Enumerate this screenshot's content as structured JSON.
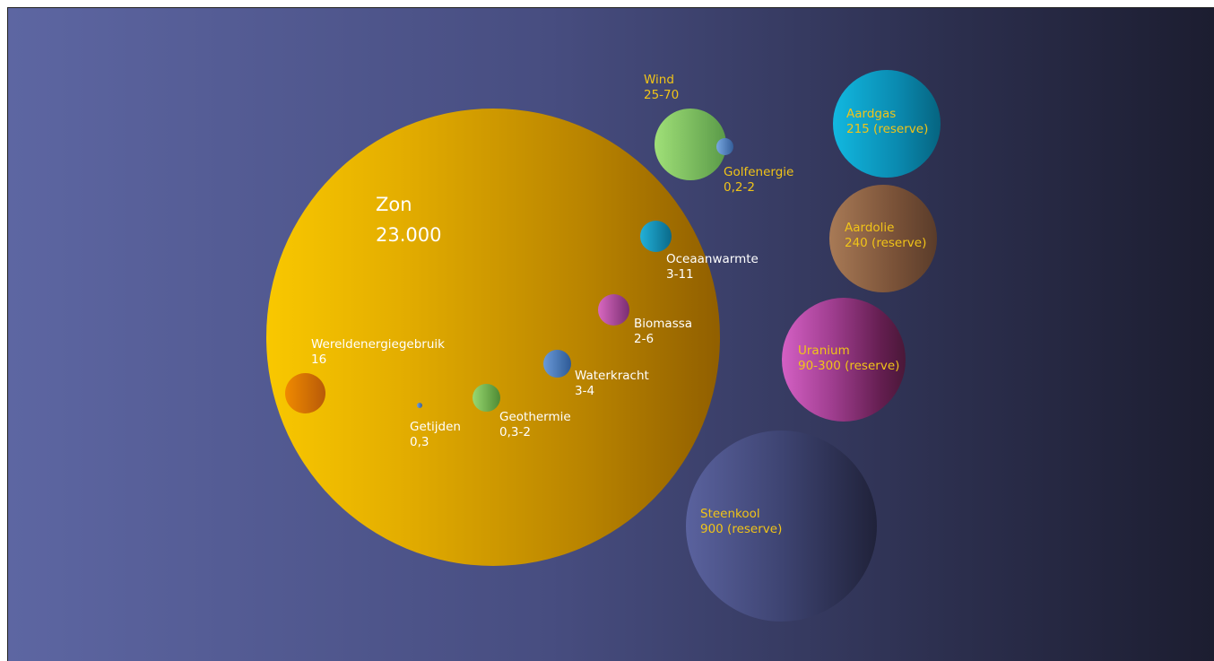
{
  "bubbles": {
    "zon": {
      "name": "Zon",
      "value": "23.000",
      "color": "#f5b800"
    },
    "wereldenergiegebruik": {
      "name": "Wereldenergiegebruik",
      "value": "16",
      "color": "#e8800a"
    },
    "getijden": {
      "name": "Getijden",
      "value": "0,3",
      "color": "#4a7fc0"
    },
    "geothermie": {
      "name": "Geothermie",
      "value": "0,3-2",
      "color": "#7ec04a"
    },
    "waterkracht": {
      "name": "Waterkracht",
      "value": "3-4",
      "color": "#4a7fc0"
    },
    "biomassa": {
      "name": "Biomassa",
      "value": "2-6",
      "color": "#c050a8"
    },
    "oceaanwarmte": {
      "name": "Oceaanwarmte",
      "value": "3-11",
      "color": "#1ca0c8"
    },
    "wind": {
      "name": "Wind",
      "value": "25-70",
      "color": "#80c860"
    },
    "golfenergie": {
      "name": "Golfenergie",
      "value": "0,2-2",
      "color": "#4a7fc0"
    },
    "aardgas": {
      "name": "Aardgas",
      "value": "215 (reserve)",
      "color": "#0ca8d0"
    },
    "aardolie": {
      "name": "Aardolie",
      "value": "240 (reserve)",
      "color": "#9a6a48"
    },
    "uranium": {
      "name": "Uranium",
      "value": "90-300 (reserve)",
      "color": "#c050b0"
    },
    "steenkool": {
      "name": "Steenkool",
      "value": "900 (reserve)",
      "color": "#555c98"
    }
  }
}
